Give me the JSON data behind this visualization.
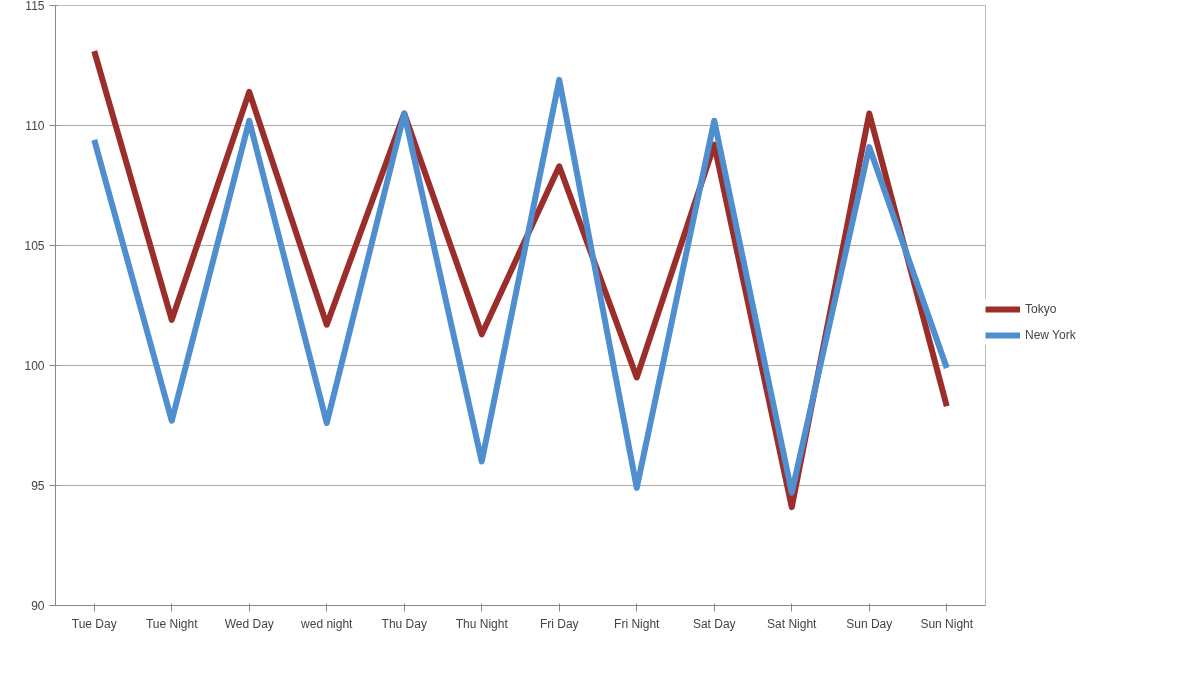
{
  "chart_data": {
    "type": "line",
    "categories": [
      "Tue Day",
      "Tue Night",
      "Wed Day",
      "wed night",
      "Thu Day",
      "Thu Night",
      "Fri Day",
      "Fri Night",
      "Sat Day",
      "Sat Night",
      "Sun Day",
      "Sun Night"
    ],
    "series": [
      {
        "name": "Tokyo",
        "color": "#9b2d2a",
        "values": [
          113.1,
          101.9,
          111.4,
          101.7,
          110.5,
          101.3,
          108.3,
          99.5,
          109.2,
          94.1,
          110.5,
          98.3
        ]
      },
      {
        "name": "New York",
        "color": "#4f8fd0",
        "values": [
          109.4,
          97.7,
          110.2,
          97.6,
          110.5,
          96.0,
          111.9,
          94.9,
          110.2,
          94.7,
          109.1,
          99.9
        ]
      }
    ],
    "ylim": [
      90,
      115
    ],
    "yticks": [
      90,
      95,
      100,
      105,
      110,
      115
    ],
    "grid": "y",
    "legend": "right",
    "marker": "none",
    "line_style": "solid"
  }
}
